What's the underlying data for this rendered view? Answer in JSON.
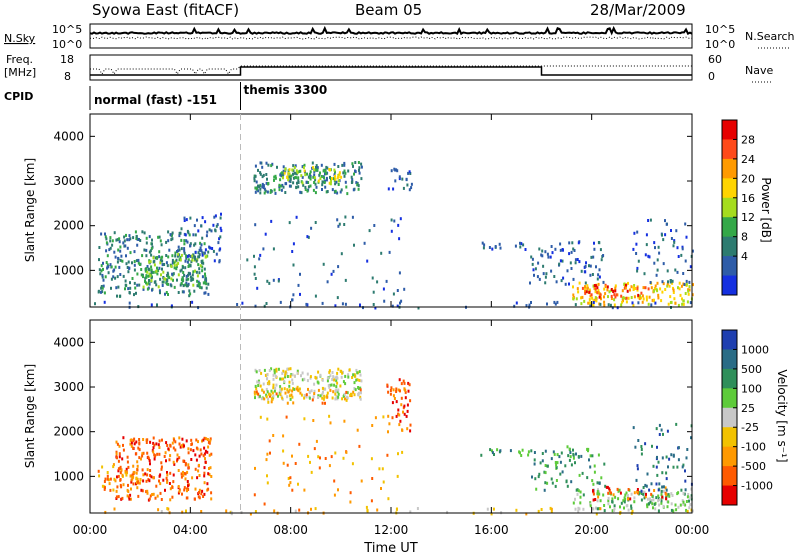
{
  "header": {
    "title": "Syowa East (fitACF)",
    "beam": "Beam 05",
    "date": "28/Mar/2009"
  },
  "noise_panel": {
    "left_label": "N.Sky",
    "left_ticks": [
      "10^5",
      "10^0"
    ],
    "right_label": "N.Search",
    "right_ticks": [
      "10^5",
      "10^0"
    ]
  },
  "freq_panel": {
    "left_label_1": "Freq.",
    "left_label_2": "[MHz]",
    "left_ticks": [
      "18",
      "8"
    ],
    "right_label": "Nave",
    "right_ticks": [
      "60",
      "0"
    ]
  },
  "cpid": {
    "label": "CPID",
    "segments": [
      {
        "start_hour": 0,
        "name": "normal (fast) -151"
      },
      {
        "start_hour": 6,
        "name": "themis 3300"
      }
    ]
  },
  "time_axis": {
    "xlabel": "Time UT",
    "tick_labels": [
      "00:00",
      "04:00",
      "08:00",
      "12:00",
      "16:00",
      "20:00",
      "00:00"
    ],
    "range_hours": [
      0,
      24
    ]
  },
  "power_colorbar": {
    "label": "Power [dB]",
    "tick_labels": [
      "28",
      "24",
      "20",
      "16",
      "12",
      "8",
      "4"
    ],
    "colors": [
      "#e60000",
      "#ff4a1a",
      "#ff9a00",
      "#ffd400",
      "#a5dc1e",
      "#34a848",
      "#2d7b70",
      "#2e5ca8",
      "#1530e0"
    ]
  },
  "velocity_colorbar": {
    "label": "Velocity [m s⁻¹]",
    "tick_labels": [
      "1000",
      "500",
      "100",
      "25",
      "-25",
      "-100",
      "-500",
      "-1000"
    ],
    "colors": [
      "#1f3fb0",
      "#2a6c86",
      "#2f8f5a",
      "#5ecb3a",
      "#c8c8c8",
      "#f2c200",
      "#ff9900",
      "#ff5a00",
      "#e60000"
    ]
  },
  "chart_data": [
    {
      "type": "heatmap",
      "title": "",
      "xlabel": "Time UT",
      "ylabel": "Slant Range [km]",
      "xlim_hours": [
        0,
        24
      ],
      "ylim_km": [
        180,
        4500
      ],
      "y_tick_labels": [
        "1000",
        "2000",
        "3000",
        "4000"
      ],
      "colorbar": "Power [dB]",
      "regions": [
        {
          "t0": 0.3,
          "t1": 4.7,
          "r0": 450,
          "r1": 1900,
          "value_level": 6,
          "density": 0.35
        },
        {
          "t0": 2.0,
          "t1": 4.6,
          "r0": 650,
          "r1": 1400,
          "value_level": 5,
          "density": 0.45
        },
        {
          "t0": 3.6,
          "t1": 5.2,
          "r0": 1200,
          "r1": 2300,
          "value_level": 7,
          "density": 0.25
        },
        {
          "t0": 6.5,
          "t1": 10.8,
          "r0": 2750,
          "r1": 3450,
          "value_level": 6,
          "density": 0.5
        },
        {
          "t0": 7.5,
          "t1": 10.0,
          "r0": 2950,
          "r1": 3350,
          "value_level": 4,
          "density": 0.4
        },
        {
          "t0": 11.8,
          "t1": 12.8,
          "r0": 2800,
          "r1": 3300,
          "value_level": 7,
          "density": 0.3
        },
        {
          "t0": 6.2,
          "t1": 12.5,
          "r0": 200,
          "r1": 2400,
          "value_level": 7,
          "density": 0.04
        },
        {
          "t0": 15.5,
          "t1": 17.5,
          "r0": 1500,
          "r1": 1650,
          "value_level": 7,
          "density": 0.35
        },
        {
          "t0": 17.5,
          "t1": 20.5,
          "r0": 700,
          "r1": 1700,
          "value_level": 7,
          "density": 0.2
        },
        {
          "t0": 19.2,
          "t1": 24.0,
          "r0": 250,
          "r1": 750,
          "value_level": 3,
          "density": 0.45
        },
        {
          "t0": 19.5,
          "t1": 22.5,
          "r0": 400,
          "r1": 700,
          "value_level": 1,
          "density": 0.35
        },
        {
          "t0": 21.5,
          "t1": 24.0,
          "r0": 700,
          "r1": 2200,
          "value_level": 7,
          "density": 0.12
        },
        {
          "t0": 0.0,
          "t1": 24.0,
          "r0": 190,
          "r1": 320,
          "value_level": 7,
          "density": 0.12
        }
      ]
    },
    {
      "type": "heatmap",
      "title": "",
      "xlabel": "Time UT",
      "ylabel": "Slant Range [km]",
      "xlim_hours": [
        0,
        24
      ],
      "ylim_km": [
        180,
        4500
      ],
      "y_tick_labels": [
        "1000",
        "2000",
        "3000",
        "4000"
      ],
      "colorbar": "Velocity [m s⁻¹]",
      "regions": [
        {
          "t0": 1.0,
          "t1": 4.8,
          "r0": 500,
          "r1": 1900,
          "value_level": 7,
          "density": 0.4
        },
        {
          "t0": 0.3,
          "t1": 2.0,
          "r0": 700,
          "r1": 1300,
          "value_level": 6,
          "density": 0.35
        },
        {
          "t0": 6.5,
          "t1": 10.8,
          "r0": 2750,
          "r1": 3450,
          "value_level": 4,
          "density": 0.55
        },
        {
          "t0": 6.5,
          "t1": 10.8,
          "r0": 2650,
          "r1": 3000,
          "value_level": 6,
          "density": 0.25
        },
        {
          "t0": 11.8,
          "t1": 12.8,
          "r0": 2000,
          "r1": 3200,
          "value_level": 7,
          "density": 0.3
        },
        {
          "t0": 6.2,
          "t1": 12.5,
          "r0": 200,
          "r1": 2400,
          "value_level": 6,
          "density": 0.04
        },
        {
          "t0": 15.5,
          "t1": 17.5,
          "r0": 1500,
          "r1": 1650,
          "value_level": 2,
          "density": 0.35
        },
        {
          "t0": 17.5,
          "t1": 20.5,
          "r0": 700,
          "r1": 1700,
          "value_level": 2,
          "density": 0.2
        },
        {
          "t0": 19.2,
          "t1": 24.0,
          "r0": 250,
          "r1": 750,
          "value_level": 3,
          "density": 0.45
        },
        {
          "t0": 20.0,
          "t1": 23.0,
          "r0": 500,
          "r1": 800,
          "value_level": 7,
          "density": 0.25
        },
        {
          "t0": 21.5,
          "t1": 24.0,
          "r0": 700,
          "r1": 2200,
          "value_level": 1,
          "density": 0.12
        },
        {
          "t0": 0.0,
          "t1": 24.0,
          "r0": 190,
          "r1": 320,
          "value_level": 5,
          "density": 0.12
        }
      ]
    }
  ]
}
